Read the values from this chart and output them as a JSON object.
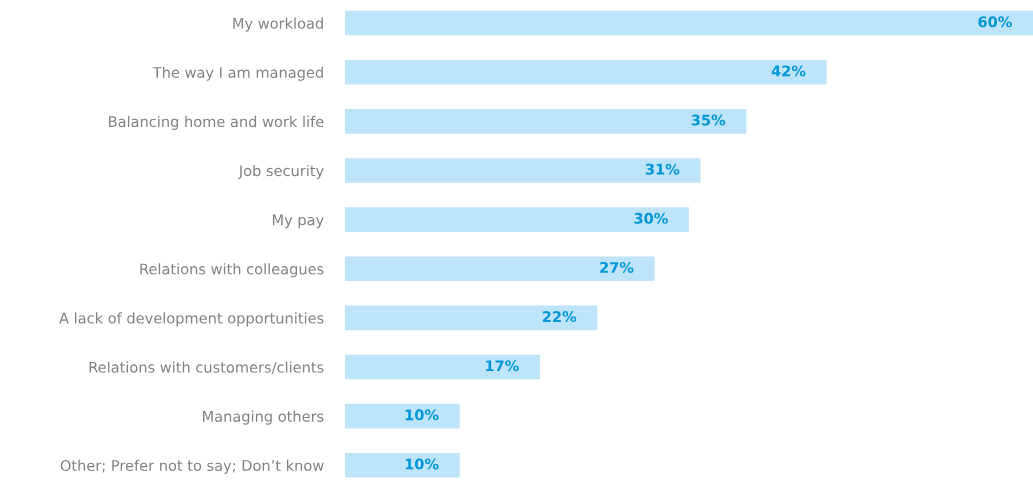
{
  "chart_data": {
    "type": "bar",
    "orientation": "horizontal",
    "categories": [
      "My workload",
      "The way I am managed",
      "Balancing home and work life",
      "Job security",
      "My pay",
      "Relations with colleagues",
      "A lack of development opportunities",
      "Relations with customers/clients",
      "Managing others",
      "Other; Prefer not to say; Don’t know"
    ],
    "values": [
      60,
      42,
      35,
      31,
      30,
      27,
      22,
      17,
      10,
      10
    ],
    "value_labels": [
      "60%",
      "42%",
      "35%",
      "31%",
      "30%",
      "27%",
      "22%",
      "17%",
      "10%",
      "10%"
    ],
    "color": "#bee4f9",
    "grid": false,
    "legend": false
  }
}
